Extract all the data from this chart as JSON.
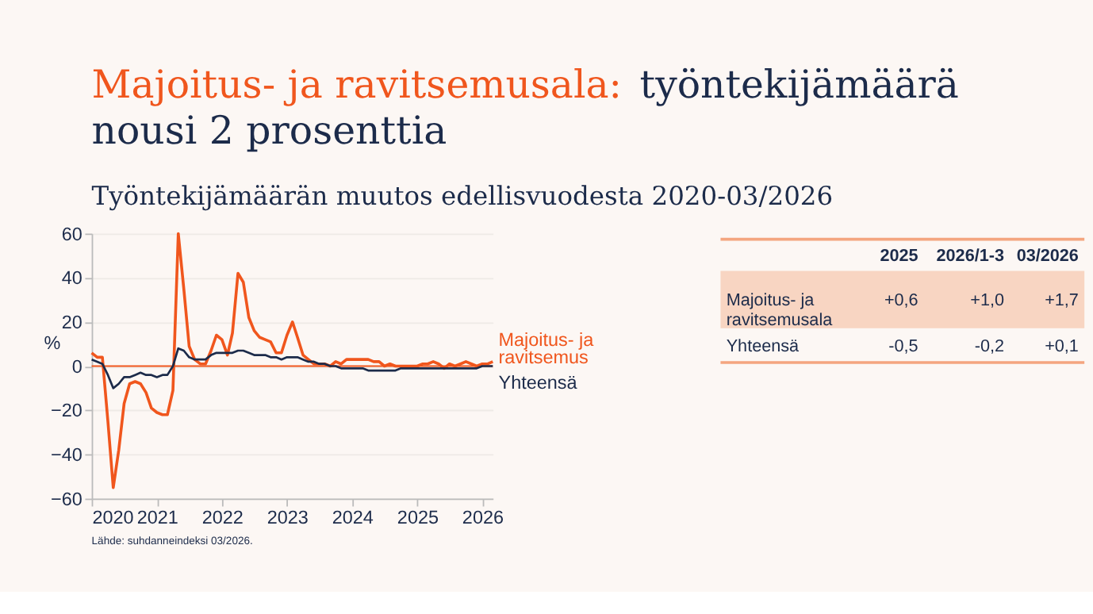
{
  "chart_data": [
    {
      "type": "line",
      "title": "Majoitus- ja ravitsemusala: työntekijämäärä\nnousi 2 prosenttia",
      "subtitle": "Työntekijämäärän muutos edellisvuodesta 2020-03/2026",
      "ylabel": "%",
      "x": [
        "2020-01",
        "2020-02",
        "2020-03",
        "2020-04",
        "2020-05",
        "2020-06",
        "2020-07",
        "2020-08",
        "2020-09",
        "2020-10",
        "2020-11",
        "2020-12",
        "2021-01",
        "2021-02",
        "2021-03",
        "2021-04",
        "2021-05",
        "2021-06",
        "2021-07",
        "2021-08",
        "2021-09",
        "2021-10",
        "2021-11",
        "2021-12",
        "2022-01",
        "2022-02",
        "2022-03",
        "2022-04",
        "2022-05",
        "2022-06",
        "2022-07",
        "2022-08",
        "2022-09",
        "2022-10",
        "2022-11",
        "2022-12",
        "2023-01",
        "2023-02",
        "2023-03",
        "2023-04",
        "2023-05",
        "2023-06",
        "2023-07",
        "2023-08",
        "2023-09",
        "2023-10",
        "2023-11",
        "2023-12",
        "2024-01",
        "2024-02",
        "2024-03",
        "2024-04",
        "2024-05",
        "2024-06",
        "2024-07",
        "2024-08",
        "2024-09",
        "2024-10",
        "2024-11",
        "2024-12",
        "2025-01",
        "2025-02",
        "2025-03",
        "2025-04",
        "2025-05",
        "2025-06",
        "2025-07",
        "2025-08",
        "2025-09",
        "2025-10",
        "2025-11",
        "2025-12",
        "2026-01",
        "2026-02",
        "2026-03"
      ],
      "series": [
        {
          "name": "Majoitus- ja\nravitsemus",
          "color": "#f0561d",
          "values": [
            6,
            4,
            4,
            -25,
            -55,
            -38,
            -17,
            -8,
            -7,
            -8,
            -12,
            -19,
            -21,
            -22,
            -22,
            -11,
            60,
            35,
            9,
            3,
            1,
            1,
            7,
            14,
            12,
            5,
            15,
            42,
            38,
            22,
            16,
            13,
            12,
            11,
            6,
            6,
            14,
            20,
            13,
            5,
            3,
            1,
            1,
            1,
            0,
            2,
            1,
            3,
            3,
            3,
            3,
            3,
            2,
            2,
            0,
            1,
            0,
            0,
            0,
            0,
            0,
            1,
            1,
            2,
            1,
            -1,
            1,
            0,
            1,
            2,
            1,
            0,
            1,
            1,
            2
          ]
        },
        {
          "name": "Yhteensä",
          "color": "#1c2b4a",
          "values": [
            3,
            2,
            1,
            -4,
            -10,
            -8,
            -5,
            -5,
            -4,
            -3,
            -4,
            -4,
            -5,
            -4,
            -4,
            0,
            8,
            7,
            4,
            3,
            3,
            3,
            5,
            6,
            6,
            6,
            6,
            7,
            7,
            6,
            5,
            5,
            5,
            4,
            4,
            3,
            4,
            4,
            4,
            3,
            2,
            2,
            1,
            1,
            0,
            0,
            -1,
            -1,
            -1,
            -1,
            -1,
            -2,
            -2,
            -2,
            -2,
            -2,
            -2,
            -1,
            -1,
            -1,
            -1,
            -1,
            -1,
            -1,
            -1,
            -1,
            -1,
            -1,
            -1,
            -1,
            -1,
            -1,
            0,
            0,
            0
          ]
        }
      ],
      "xlim": [
        "2020-01",
        "2026-03"
      ],
      "xticks": [
        "2020",
        "2021",
        "2022",
        "2023",
        "2024",
        "2025",
        "2026"
      ],
      "ylim": [
        -60,
        60
      ],
      "yticks": [
        -60,
        -40,
        -20,
        0,
        20,
        40,
        60
      ],
      "grid": "y",
      "ref_lines": [
        {
          "axis": "y",
          "value": 0,
          "color": "#f0561d"
        }
      ],
      "annotations": [
        "Lähde: suhdanneindeksi 03/2026."
      ]
    },
    {
      "type": "other",
      "categories": [
        "2025",
        "2026/1-3",
        "03/2026"
      ],
      "y_categories": [
        "Majoitus- ja\nravitsemusala",
        "Yhteensä"
      ],
      "cell_labels": [
        [
          "+0,6",
          "+1,0",
          "+1,7"
        ],
        [
          "-0,5",
          "-0,2",
          "+0,1"
        ]
      ]
    }
  ]
}
